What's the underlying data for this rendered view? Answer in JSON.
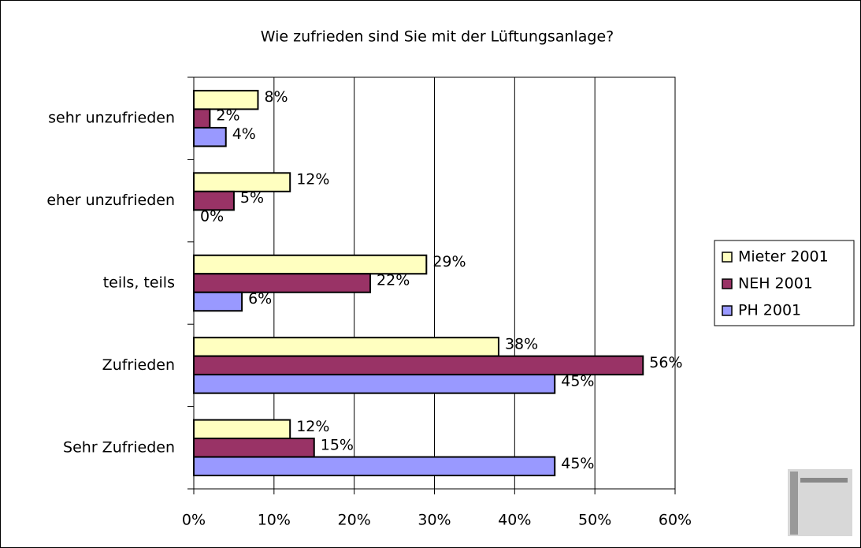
{
  "chart_data": {
    "type": "bar",
    "orientation": "horizontal",
    "title": "Wie zufrieden sind Sie mit der Lüftungsanlage?",
    "categories": [
      "sehr unzufrieden",
      "eher unzufrieden",
      "teils, teils",
      "Zufrieden",
      "Sehr Zufrieden"
    ],
    "series": [
      {
        "name": "Mieter 2001",
        "color": "#ffffc0",
        "values": [
          8,
          12,
          29,
          38,
          12
        ],
        "value_labels": [
          "8%",
          "12%",
          "29%",
          "38%",
          "12%"
        ]
      },
      {
        "name": "NEH 2001",
        "color": "#993366",
        "values": [
          2,
          5,
          22,
          56,
          15
        ],
        "value_labels": [
          "2%",
          "5%",
          "22%",
          "56%",
          "15%"
        ]
      },
      {
        "name": "PH 2001",
        "color": "#9999ff",
        "values": [
          4,
          0,
          6,
          45,
          45
        ],
        "value_labels": [
          "4%",
          "0%",
          "6%",
          "45%",
          "45%"
        ]
      }
    ],
    "xlim": [
      0,
      60
    ],
    "xticks": [
      {
        "value": 0,
        "label": "0%"
      },
      {
        "value": 10,
        "label": "10%"
      },
      {
        "value": 20,
        "label": "20%"
      },
      {
        "value": 30,
        "label": "30%"
      },
      {
        "value": 40,
        "label": "40%"
      },
      {
        "value": 50,
        "label": "50%"
      },
      {
        "value": 60,
        "label": "60%"
      }
    ],
    "grid": true,
    "legend": "right"
  }
}
